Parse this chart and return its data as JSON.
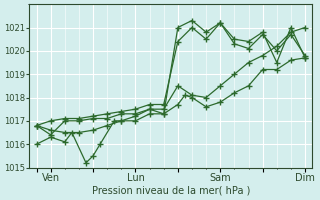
{
  "background_color": "#d4eeed",
  "grid_color": "#ffffff",
  "line_color": "#2d6a2d",
  "marker_color": "#2d6a2d",
  "xlabel": "Pression niveau de la mer( hPa )",
  "ylim": [
    1015,
    1022
  ],
  "yticks": [
    1015,
    1016,
    1017,
    1018,
    1019,
    1020,
    1021
  ],
  "xtick_labels": [
    "",
    "Ven",
    "",
    "Lun",
    "",
    "Sam",
    "",
    "Dim"
  ],
  "xtick_positions": [
    0,
    1,
    4,
    7,
    10,
    13,
    16,
    19
  ],
  "series": [
    {
      "x": [
        0,
        1,
        2,
        2.5,
        3.5,
        4,
        4.5,
        5.5,
        6,
        7,
        8,
        9,
        10,
        10.5,
        11,
        12,
        13,
        14,
        15,
        16,
        17,
        18,
        19
      ],
      "y": [
        1016.0,
        1016.3,
        1016.1,
        1016.5,
        1015.2,
        1015.5,
        1016.0,
        1017.0,
        1017.0,
        1017.2,
        1017.5,
        1017.3,
        1017.7,
        1018.1,
        1018.0,
        1017.6,
        1017.8,
        1018.2,
        1018.5,
        1019.2,
        1019.2,
        1019.6,
        1019.7
      ]
    },
    {
      "x": [
        0,
        1,
        2,
        3,
        4,
        5,
        6,
        7,
        8,
        9,
        10,
        11,
        12,
        13,
        14,
        15,
        16,
        17,
        18,
        19
      ],
      "y": [
        1016.8,
        1016.4,
        1017.0,
        1017.0,
        1017.1,
        1017.1,
        1017.3,
        1017.3,
        1017.5,
        1017.5,
        1018.5,
        1018.1,
        1018.0,
        1018.5,
        1019.0,
        1019.5,
        1019.8,
        1020.2,
        1020.8,
        1021.0
      ]
    },
    {
      "x": [
        0,
        1,
        2,
        3,
        4,
        5,
        6,
        7,
        8,
        9,
        10,
        11,
        12,
        13,
        14,
        15,
        16,
        17,
        18,
        19
      ],
      "y": [
        1016.8,
        1017.0,
        1017.1,
        1017.1,
        1017.2,
        1017.3,
        1017.4,
        1017.5,
        1017.7,
        1017.7,
        1020.4,
        1021.0,
        1020.5,
        1021.2,
        1020.5,
        1020.4,
        1020.8,
        1019.5,
        1021.0,
        1019.7
      ]
    },
    {
      "x": [
        0,
        1,
        2,
        3,
        4,
        5,
        6,
        7,
        8,
        9,
        10,
        11,
        12,
        13,
        14,
        15,
        16,
        17,
        18,
        19
      ],
      "y": [
        1016.8,
        1016.6,
        1016.5,
        1016.5,
        1016.6,
        1016.8,
        1017.0,
        1017.0,
        1017.3,
        1017.3,
        1021.0,
        1021.3,
        1020.8,
        1021.2,
        1020.3,
        1020.1,
        1020.7,
        1020.0,
        1020.7,
        1019.8
      ]
    }
  ]
}
